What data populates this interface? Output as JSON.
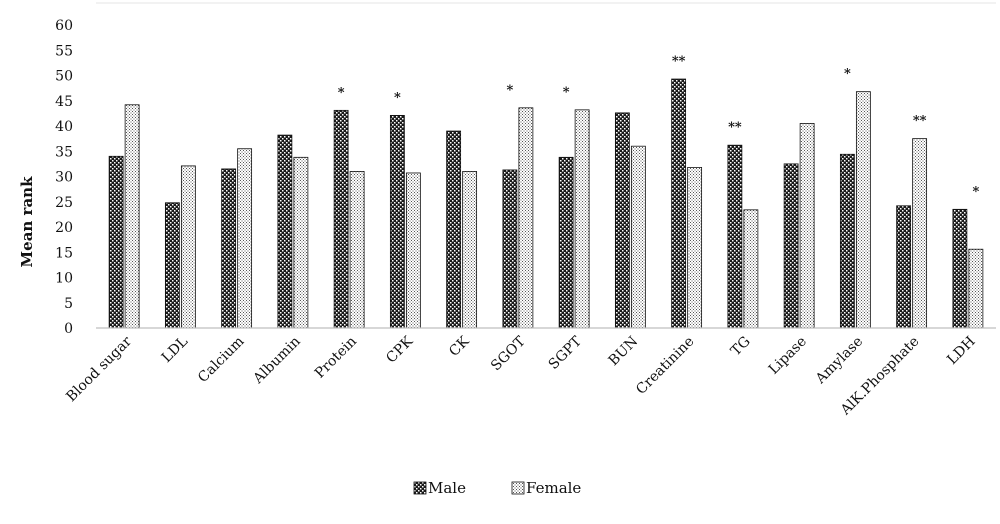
{
  "chart_data": {
    "type": "bar",
    "title": "",
    "xlabel": "",
    "ylabel": "Mean rank",
    "ylim": [
      0,
      60
    ],
    "yticks": [
      0,
      5,
      10,
      15,
      20,
      25,
      30,
      35,
      40,
      45,
      50,
      55,
      60
    ],
    "grid": false,
    "legend_position": "bottom-center",
    "categories": [
      "Blood sugar",
      "LDL",
      "Calcium",
      "Albumin",
      "Protein",
      "CPK",
      "CK",
      "SGOT",
      "SGPT",
      "BUN",
      "Creatinine",
      "TG",
      "Lipase",
      "Amylase",
      "AlK.Phosphate",
      "LDH"
    ],
    "series": [
      {
        "name": "Male",
        "pattern": "dark-dotted",
        "values": [
          34,
          24.8,
          31.5,
          38.2,
          43.1,
          42.1,
          39,
          31.3,
          33.8,
          42.6,
          49.3,
          36.2,
          32.5,
          34.4,
          24.2,
          23.5
        ]
      },
      {
        "name": "Female",
        "pattern": "light-dotted",
        "values": [
          44.2,
          32.1,
          35.5,
          33.8,
          31,
          30.7,
          31,
          43.6,
          43.2,
          36,
          31.8,
          23.4,
          40.5,
          46.8,
          37.5,
          15.6
        ]
      }
    ],
    "annotations": [
      {
        "category": "Protein",
        "text": "*",
        "series": "Male"
      },
      {
        "category": "CPK",
        "text": "*",
        "series": "Male"
      },
      {
        "category": "SGOT",
        "text": "*",
        "series": "Male"
      },
      {
        "category": "SGPT",
        "text": "*",
        "series": "Male"
      },
      {
        "category": "Creatinine",
        "text": "**",
        "series": "Male"
      },
      {
        "category": "TG",
        "text": "**",
        "series": "Male"
      },
      {
        "category": "Amylase",
        "text": "*",
        "series": "Male"
      },
      {
        "category": "AlK.Phosphate",
        "text": "**",
        "series": "Female"
      },
      {
        "category": "LDH",
        "text": "*",
        "series": "Female"
      }
    ],
    "colors": {
      "axis": "#bfbfbf",
      "bar_stroke": "#111111",
      "male_fill": "#1a1a1a",
      "female_fill": "#ffffff"
    }
  }
}
